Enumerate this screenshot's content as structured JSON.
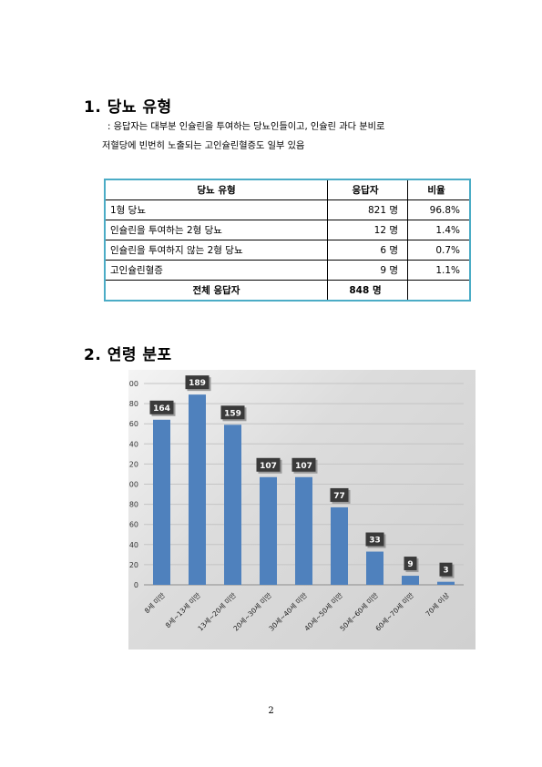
{
  "sections": {
    "s1_title": "1. 당뇨 유형",
    "s1_line1": ": 응답자는 대부분 인슐린을 투여하는 당뇨인들이고, 인슐린 과다 분비로",
    "s1_line2": "저혈당에 빈번히 노출되는 고인슐린혈증도 일부 있음",
    "s2_title": "2. 연령 분포"
  },
  "table": {
    "headers": [
      "당뇨 유형",
      "응답자",
      "비율"
    ],
    "rows": [
      [
        "1형 당뇨",
        "821 명",
        "96.8%"
      ],
      [
        "인슐린을 투여하는 2형 당뇨",
        "12 명",
        "1.4%"
      ],
      [
        "인슐린을 투여하지 않는 2형 당뇨",
        "6 명",
        "0.7%"
      ],
      [
        "고인슐린혈증",
        "9 명",
        "1.1%"
      ]
    ],
    "total": [
      "전체 응답자",
      "848 명",
      ""
    ]
  },
  "chart_data": {
    "type": "bar",
    "categories": [
      "8세 미만",
      "8세~13세 미만",
      "13세~20세 미만",
      "20세~30세 미만",
      "30세~40세 미만",
      "40세~50세 미만",
      "50세~60세 미만",
      "60세~70세 미만",
      "70세 이상"
    ],
    "values": [
      164,
      189,
      159,
      107,
      107,
      77,
      33,
      9,
      3
    ],
    "ylim": [
      0,
      200
    ],
    "yticks": [
      "0",
      "20",
      "40",
      "60",
      "80",
      "100",
      "120",
      "140",
      "160",
      "180",
      "200"
    ],
    "grid": true,
    "legend": "none",
    "colors": {
      "bar": "#4f81bd",
      "label_bg": "#3a3a3a",
      "label_text": "#ffffff"
    }
  },
  "footer": {
    "page_number": "2"
  }
}
